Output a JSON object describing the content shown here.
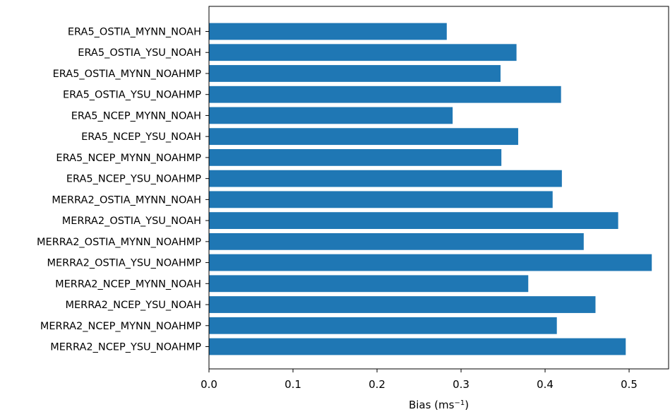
{
  "chart_data": {
    "type": "bar",
    "orientation": "horizontal",
    "categories": [
      "ERA5_OSTIA_MYNN_NOAH",
      "ERA5_OSTIA_YSU_NOAH",
      "ERA5_OSTIA_MYNN_NOAHMP",
      "ERA5_OSTIA_YSU_NOAHMP",
      "ERA5_NCEP_MYNN_NOAH",
      "ERA5_NCEP_YSU_NOAH",
      "ERA5_NCEP_MYNN_NOAHMP",
      "ERA5_NCEP_YSU_NOAHMP",
      "MERRA2_OSTIA_MYNN_NOAH",
      "MERRA2_OSTIA_YSU_NOAH",
      "MERRA2_OSTIA_MYNN_NOAHMP",
      "MERRA2_OSTIA_YSU_NOAHMP",
      "MERRA2_NCEP_MYNN_NOAH",
      "MERRA2_NCEP_YSU_NOAH",
      "MERRA2_NCEP_MYNN_NOAHMP",
      "MERRA2_NCEP_YSU_NOAHMP"
    ],
    "values": [
      0.283,
      0.366,
      0.347,
      0.419,
      0.29,
      0.368,
      0.348,
      0.42,
      0.409,
      0.487,
      0.446,
      0.527,
      0.38,
      0.46,
      0.414,
      0.496
    ],
    "xlabel": "Bias (ms",
    "xlabel_superscript": "−1",
    "xlabel_suffix": ")",
    "xlim": [
      0.0,
      0.547
    ],
    "xticks": [
      0.0,
      0.1,
      0.2,
      0.3,
      0.4,
      0.5
    ],
    "xtick_labels": [
      "0.0",
      "0.1",
      "0.2",
      "0.3",
      "0.4",
      "0.5"
    ],
    "bar_color": "#1f77b4",
    "grid": false,
    "legend": "none"
  }
}
